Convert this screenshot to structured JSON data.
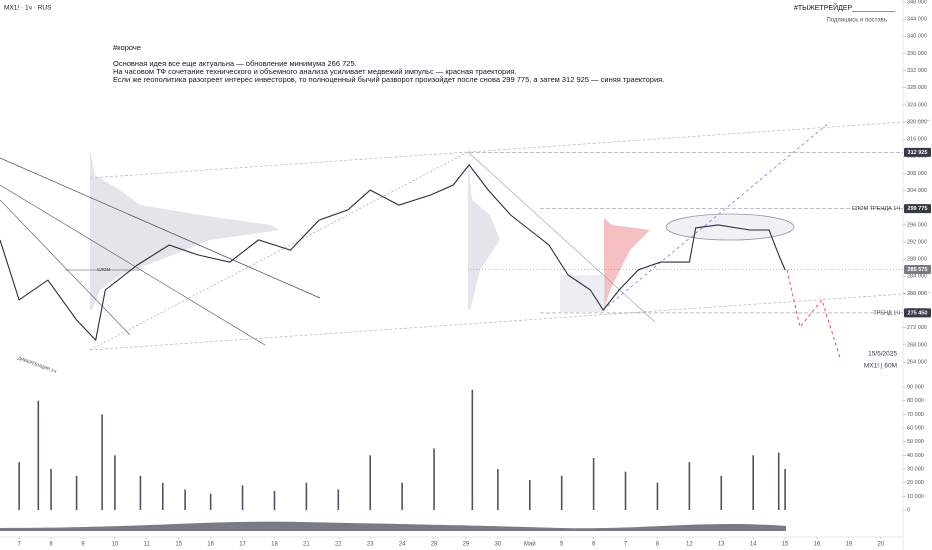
{
  "header": {
    "symbol": "MX1! · 1ч · RUS",
    "brand": "#ТЫЖЕТРЕЙДЕР___________",
    "cta": "Подпишись и поставь"
  },
  "note": {
    "tag": "#короче",
    "lines": [
      "Основная идея все еще актуальна — обновление минимума 266 725.",
      "На часовом ТФ сочетание технического и объемного анализа усиливает медвежий импульс  — красная траектория.",
      "Если же геополитика разогреет интерес инвесторов, то полноценный бычий разворот произойдет после снова 299 775, а затем 312 925 — синяя траектория."
    ]
  },
  "chart_data": [
    {
      "type": "line",
      "series": [
        {
          "color": "#2a2e39",
          "x": [
            -0.6,
            0,
            0.9,
            1.8,
            2.4,
            2.7,
            3.7,
            4.7,
            5.6,
            6.6,
            7.5,
            8.5,
            9.4,
            10.3,
            11.0,
            11.9,
            12.9,
            13.6,
            14.1,
            14.7,
            15.4,
            16.0,
            16.6,
            17.2,
            17.9,
            18.3,
            18.8,
            19.4,
            20.1,
            21.0,
            21.2,
            21.9,
            22.9,
            23.5,
            23.8,
            24.0
          ],
          "values": [
            292500,
            278500,
            283100,
            273800,
            269100,
            280800,
            286600,
            291300,
            289000,
            287300,
            292500,
            290100,
            297100,
            299500,
            304100,
            300600,
            303000,
            305300,
            310000,
            304100,
            298300,
            294800,
            291300,
            284300,
            280800,
            276100,
            280800,
            285500,
            287300,
            287300,
            295300,
            296000,
            294800,
            294800,
            289000,
            285500
          ]
        }
      ],
      "xlim": [
        -0.6,
        27.6
      ],
      "xticks": [
        {
          "value": 0,
          "label": "7"
        },
        {
          "value": 1,
          "label": "8"
        },
        {
          "value": 2,
          "label": "9"
        },
        {
          "value": 3,
          "label": "10"
        },
        {
          "value": 4,
          "label": "11"
        },
        {
          "value": 5,
          "label": "15"
        },
        {
          "value": 6,
          "label": "16"
        },
        {
          "value": 7,
          "label": "17"
        },
        {
          "value": 8,
          "label": "18"
        },
        {
          "value": 9,
          "label": "21"
        },
        {
          "value": 10,
          "label": "22"
        },
        {
          "value": 11,
          "label": "23"
        },
        {
          "value": 12,
          "label": "24"
        },
        {
          "value": 13,
          "label": "28"
        },
        {
          "value": 14,
          "label": "29"
        },
        {
          "value": 15,
          "label": "30"
        },
        {
          "value": 16,
          "label": "Май"
        },
        {
          "value": 17,
          "label": "5"
        },
        {
          "value": 18,
          "label": "6"
        },
        {
          "value": 19,
          "label": "7"
        },
        {
          "value": 20,
          "label": "8"
        },
        {
          "value": 21,
          "label": "12"
        },
        {
          "value": 22,
          "label": "13"
        },
        {
          "value": 23,
          "label": "14"
        },
        {
          "value": 24,
          "label": "15"
        },
        {
          "value": 25,
          "label": "16"
        },
        {
          "value": 26,
          "label": "19"
        },
        {
          "value": 27,
          "label": "20"
        }
      ],
      "ylim": [
        264000,
        348000
      ],
      "yticks": [
        {
          "value": 264000,
          "label": "264 000"
        },
        {
          "value": 268000,
          "label": "268 000"
        },
        {
          "value": 272000,
          "label": "272 000"
        },
        {
          "value": 276000,
          "label": "276 000"
        },
        {
          "value": 280000,
          "label": "280 000"
        },
        {
          "value": 284000,
          "label": "284 000"
        },
        {
          "value": 288000,
          "label": "288 000"
        },
        {
          "value": 292000,
          "label": "292 000"
        },
        {
          "value": 296000,
          "label": "296 000"
        },
        {
          "value": 300000,
          "label": "300 000"
        },
        {
          "value": 304000,
          "label": "304 000"
        },
        {
          "value": 308000,
          "label": "308 000"
        },
        {
          "value": 312000,
          "label": "312 000"
        },
        {
          "value": 316000,
          "label": "316 000"
        },
        {
          "value": 320000,
          "label": "320 000"
        },
        {
          "value": 324000,
          "label": "324 000"
        },
        {
          "value": 328000,
          "label": "328 000"
        },
        {
          "value": 332000,
          "label": "332 000"
        },
        {
          "value": 336000,
          "label": "336 000"
        },
        {
          "value": 340000,
          "label": "340 000"
        },
        {
          "value": 344000,
          "label": "344 000"
        },
        {
          "value": 348000,
          "label": "348 000"
        }
      ],
      "levels": [
        {
          "value": 312925,
          "label": "312 925",
          "color": "#363a45"
        },
        {
          "name": "СЛОМ ТРЕНДА 1Ч",
          "value": 299775,
          "label": "299 775",
          "color": "#363a45"
        },
        {
          "value": 285575,
          "label": "285 575",
          "color": "#787b86"
        },
        {
          "name": "ТРЕНД 1Ч",
          "value": 275450,
          "label": "275 450",
          "color": "#363a45"
        }
      ],
      "annotations": [
        "15/5/2025",
        "MX1! | 60M",
        "СЛОМ",
        "ДИВЕРГЕНЦИЯ 1Ч"
      ]
    },
    {
      "type": "bar",
      "color": "#50535e",
      "x": [
        0,
        0.6,
        1,
        1.8,
        2.6,
        3,
        3.8,
        4.5,
        5.2,
        6,
        7,
        8,
        9,
        10,
        11,
        12,
        13,
        14.2,
        15,
        16,
        17,
        18,
        19,
        20,
        21,
        22,
        23,
        23.8,
        24
      ],
      "values": [
        35000,
        80000,
        30000,
        25000,
        70000,
        40000,
        25000,
        20000,
        15000,
        12000,
        18000,
        14000,
        20000,
        15000,
        40000,
        20000,
        45000,
        88000,
        30000,
        22000,
        25000,
        38000,
        28000,
        20000,
        35000,
        25000,
        40000,
        42000,
        30000
      ],
      "ylim": [
        0,
        90000
      ],
      "yticks": [
        0,
        {
          "value": 10000,
          "label": "10 000"
        },
        {
          "value": 20000,
          "label": "20 000"
        },
        {
          "value": 30000,
          "label": "30 000"
        },
        {
          "value": 40000,
          "label": "40 000"
        },
        {
          "value": 50000,
          "label": "50 000"
        },
        {
          "value": 60000,
          "label": "60 000"
        },
        {
          "value": 70000,
          "label": "70 000"
        },
        {
          "value": 80000,
          "label": "80 000"
        },
        {
          "value": 90000,
          "label": "90 000"
        }
      ]
    }
  ]
}
